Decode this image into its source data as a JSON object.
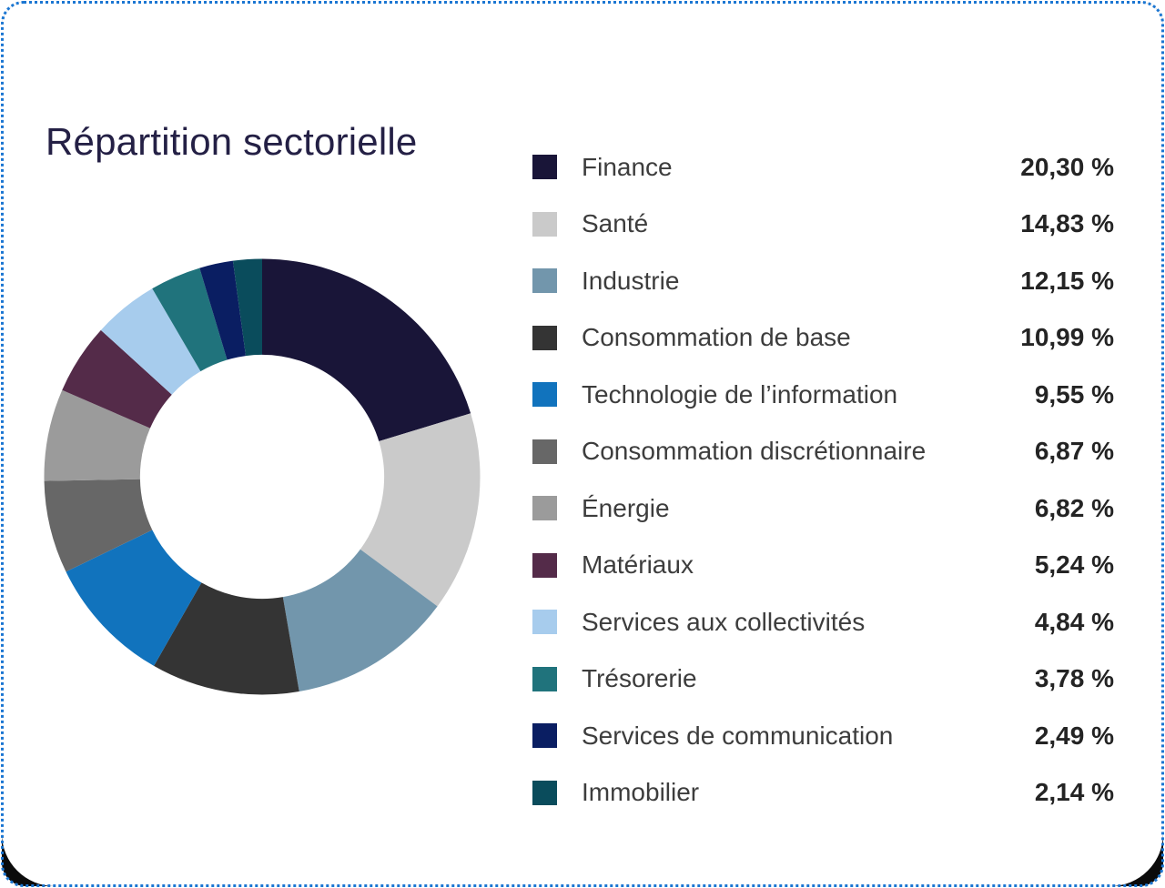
{
  "page": {
    "background_color": "#ffffff",
    "backdrop_color": "#0b0b0b",
    "selection_border_color": "#1b76d2"
  },
  "header": {
    "title": "Répartition sectorielle",
    "title_color": "#242045"
  },
  "chart_data": {
    "type": "pie",
    "variant": "donut",
    "title": "Répartition sectorielle",
    "legend_position": "right",
    "start_angle_deg": 0,
    "direction": "clockwise",
    "inner_radius_ratio": 0.56,
    "total": 100,
    "segments": [
      {
        "label": "Finance",
        "value": 20.3,
        "display": "20,30 %",
        "color": "#191538"
      },
      {
        "label": "Santé",
        "value": 14.83,
        "display": "14,83 %",
        "color": "#cacaca"
      },
      {
        "label": "Industrie",
        "value": 12.15,
        "display": "12,15 %",
        "color": "#7296ac"
      },
      {
        "label": "Consommation de base",
        "value": 10.99,
        "display": "10,99 %",
        "color": "#343434"
      },
      {
        "label": "Technologie de l’information",
        "value": 9.55,
        "display": "9,55 %",
        "color": "#1173bd"
      },
      {
        "label": "Consommation discrétionnaire",
        "value": 6.87,
        "display": "6,87 %",
        "color": "#676767"
      },
      {
        "label": "Énergie",
        "value": 6.82,
        "display": "6,82 %",
        "color": "#9b9b9b"
      },
      {
        "label": "Matériaux",
        "value": 5.24,
        "display": "5,24 %",
        "color": "#542b49"
      },
      {
        "label": "Services aux collectivités",
        "value": 4.84,
        "display": "4,84 %",
        "color": "#a7cced"
      },
      {
        "label": "Trésorerie",
        "value": 3.78,
        "display": "3,78 %",
        "color": "#20737c"
      },
      {
        "label": "Services de communication",
        "value": 2.49,
        "display": "2,49 %",
        "color": "#0a1e62"
      },
      {
        "label": "Immobilier",
        "value": 2.14,
        "display": "2,14 %",
        "color": "#0a4c5c"
      }
    ]
  }
}
